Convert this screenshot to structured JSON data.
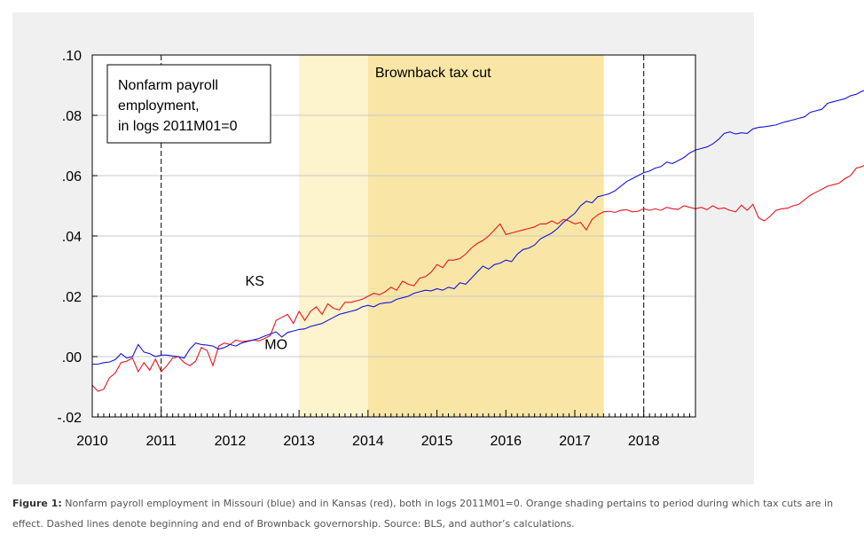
{
  "chart_data": {
    "type": "line",
    "title": "",
    "xlabel": "",
    "ylabel": "",
    "xlim": [
      2010.0,
      2018.75
    ],
    "ylim": [
      -0.02,
      0.1
    ],
    "x_ticks": [
      {
        "value": 2010,
        "label": "2010"
      },
      {
        "value": 2011,
        "label": "2011"
      },
      {
        "value": 2012,
        "label": "2012"
      },
      {
        "value": 2013,
        "label": "2013"
      },
      {
        "value": 2014,
        "label": "2014"
      },
      {
        "value": 2015,
        "label": "2015"
      },
      {
        "value": 2016,
        "label": "2016"
      },
      {
        "value": 2017,
        "label": "2017"
      },
      {
        "value": 2018,
        "label": "2018"
      }
    ],
    "y_ticks": [
      {
        "value": -0.02,
        "label": "-.02"
      },
      {
        "value": 0.0,
        "label": ".00"
      },
      {
        "value": 0.02,
        "label": ".02"
      },
      {
        "value": 0.04,
        "label": ".04"
      },
      {
        "value": 0.06,
        "label": ".06"
      },
      {
        "value": 0.08,
        "label": ".08"
      },
      {
        "value": 0.1,
        "label": ".10"
      }
    ],
    "grid": true,
    "legend_box": {
      "placement": "top-left",
      "lines": [
        "Nonfarm payroll",
        "employment,",
        "in logs 2011M01=0"
      ]
    },
    "shaded_regions": [
      {
        "x0": 2013.0,
        "x1": 2014.0,
        "color": "#fdf3cc",
        "label": ""
      },
      {
        "x0": 2014.0,
        "x1": 2017.42,
        "color": "#f9e6a6",
        "label": "Brownback tax cut",
        "label_color": "#d08c0c"
      }
    ],
    "vertical_lines": [
      {
        "x": 2011.0,
        "style": "dashed"
      },
      {
        "x": 2018.0,
        "style": "dashed"
      }
    ],
    "series": [
      {
        "name": "KS",
        "color": "#e8141b",
        "x_start": 2010.0,
        "x_step": 0.083333,
        "values": [
          -0.0095,
          -0.0115,
          -0.0108,
          -0.007,
          -0.0055,
          -0.002,
          -0.0015,
          -0.0005,
          -0.005,
          -0.002,
          -0.0045,
          -0.0008,
          -0.005,
          -0.003,
          -0.0005,
          0.0,
          -0.002,
          -0.003,
          -0.0015,
          0.003,
          0.002,
          -0.003,
          0.0035,
          0.0045,
          0.004,
          0.0055,
          0.005,
          0.0052,
          0.0055,
          0.0052,
          0.006,
          0.007,
          0.012,
          0.013,
          0.014,
          0.011,
          0.015,
          0.012,
          0.015,
          0.0165,
          0.014,
          0.0175,
          0.016,
          0.0155,
          0.018,
          0.018,
          0.0185,
          0.019,
          0.02,
          0.021,
          0.0205,
          0.0215,
          0.023,
          0.022,
          0.025,
          0.024,
          0.0235,
          0.026,
          0.0265,
          0.028,
          0.0305,
          0.0295,
          0.032,
          0.032,
          0.0325,
          0.034,
          0.036,
          0.0375,
          0.0385,
          0.04,
          0.042,
          0.044,
          0.0405,
          0.041,
          0.0415,
          0.042,
          0.0425,
          0.043,
          0.044,
          0.044,
          0.045,
          0.044,
          0.0455,
          0.045,
          0.044,
          0.0445,
          0.042,
          0.0455,
          0.047,
          0.048,
          0.0482,
          0.0478,
          0.0485,
          0.0487,
          0.048,
          0.0482,
          0.049,
          0.0485,
          0.049,
          0.0485,
          0.0495,
          0.049,
          0.0488,
          0.05,
          0.0495,
          0.049,
          0.0495,
          0.0487,
          0.05,
          0.049,
          0.0493,
          0.0485,
          0.048,
          0.0502,
          0.0485,
          0.0505,
          0.046,
          0.045,
          0.0465,
          0.0485,
          0.049,
          0.0492,
          0.05,
          0.0505,
          0.052,
          0.0535,
          0.0545,
          0.0555,
          0.0565,
          0.057,
          0.0575,
          0.059,
          0.06,
          0.0625,
          0.063,
          0.064,
          0.066,
          0.068,
          0.0645,
          0.0648
        ]
      },
      {
        "name": "MO",
        "color": "#1414dc",
        "x_start": 2010.0,
        "x_step": 0.083333,
        "values": [
          -0.0025,
          -0.0025,
          -0.002,
          -0.0018,
          -0.001,
          0.001,
          -0.0005,
          0.0,
          0.004,
          0.0015,
          0.001,
          0.0,
          0.0005,
          0.0005,
          0.0002,
          0.0,
          -0.0005,
          0.0025,
          0.0045,
          0.004,
          0.0038,
          0.0035,
          0.0025,
          0.003,
          0.004,
          0.0035,
          0.0045,
          0.005,
          0.0055,
          0.006,
          0.0068,
          0.0075,
          0.0082,
          0.0065,
          0.008,
          0.0085,
          0.009,
          0.0092,
          0.01,
          0.0105,
          0.011,
          0.012,
          0.013,
          0.014,
          0.0145,
          0.015,
          0.0155,
          0.0165,
          0.017,
          0.0165,
          0.0175,
          0.0178,
          0.018,
          0.019,
          0.0195,
          0.02,
          0.021,
          0.0215,
          0.022,
          0.0218,
          0.0225,
          0.022,
          0.023,
          0.0225,
          0.0245,
          0.024,
          0.026,
          0.028,
          0.03,
          0.029,
          0.0305,
          0.031,
          0.032,
          0.0315,
          0.034,
          0.0355,
          0.036,
          0.037,
          0.039,
          0.04,
          0.041,
          0.0425,
          0.0445,
          0.046,
          0.0475,
          0.05,
          0.0515,
          0.051,
          0.053,
          0.0535,
          0.054,
          0.055,
          0.0565,
          0.058,
          0.059,
          0.06,
          0.061,
          0.0615,
          0.0625,
          0.063,
          0.0645,
          0.064,
          0.065,
          0.066,
          0.0675,
          0.0685,
          0.069,
          0.0695,
          0.0705,
          0.072,
          0.074,
          0.0745,
          0.0738,
          0.0742,
          0.074,
          0.0755,
          0.076,
          0.0762,
          0.0765,
          0.0768,
          0.0775,
          0.078,
          0.0785,
          0.079,
          0.0795,
          0.081,
          0.0815,
          0.082,
          0.084,
          0.0845,
          0.085,
          0.0855,
          0.0865,
          0.087,
          0.088,
          0.0885,
          0.089,
          0.09,
          0.0915,
          0.0922
        ]
      }
    ],
    "series_labels": [
      {
        "text": "KS",
        "color": "#e8141b",
        "x": 2012.22,
        "y": 0.0235
      },
      {
        "text": "MO",
        "color": "#1414dc",
        "x": 2012.5,
        "y": 0.0025
      }
    ]
  },
  "caption": {
    "label": "Figure 1:",
    "text": "Nonfarm payroll employment in Missouri (blue) and in Kansas (red), both in logs 2011M01=0. Orange shading pertains to period during which tax cuts are in effect. Dashed lines denote beginning and end of Brownback governorship. Source: BLS, and author’s calculations."
  }
}
